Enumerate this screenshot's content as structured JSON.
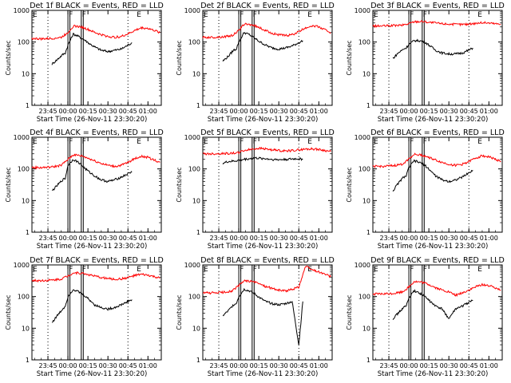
{
  "figure": {
    "xlabel": "Start Time (26-Nov-11 23:30:20)",
    "ylabel": "Counts/sec",
    "x_ticks": [
      "23:45",
      "00:00",
      "00:15",
      "00:30",
      "00:45",
      "01:00"
    ],
    "y_ticks": [
      "1",
      "10",
      "100",
      "1000"
    ],
    "colors": {
      "events": "#000000",
      "lld": "#ff0000",
      "axes": "#000000"
    }
  },
  "chart_data": [
    {
      "type": "line",
      "title": "Det 1f BLACK = Events, RED = LLD",
      "ylim": [
        1,
        1000
      ],
      "yscale": "log",
      "xlim": [
        "23:33",
        "01:10"
      ],
      "series": [
        {
          "name": "Events",
          "color": "#000000",
          "x": [
            "23:48",
            "23:52",
            "23:56",
            "23:58",
            "00:00",
            "00:04",
            "00:08",
            "00:12",
            "00:16",
            "00:20",
            "00:25",
            "00:30",
            "00:35",
            "00:40",
            "00:45",
            "00:48"
          ],
          "y": [
            20,
            28,
            40,
            45,
            80,
            180,
            150,
            120,
            90,
            70,
            55,
            50,
            55,
            60,
            80,
            95
          ]
        },
        {
          "name": "LLD",
          "color": "#ff0000",
          "x": [
            "23:33",
            "23:40",
            "23:48",
            "23:55",
            "00:00",
            "00:04",
            "00:10",
            "00:15",
            "00:20",
            "00:25",
            "00:30",
            "00:35",
            "00:40",
            "00:45",
            "00:50",
            "00:55",
            "01:00",
            "01:05",
            "01:09"
          ],
          "y": [
            130,
            125,
            130,
            140,
            200,
            320,
            300,
            250,
            200,
            170,
            150,
            140,
            150,
            180,
            230,
            280,
            270,
            230,
            200
          ]
        }
      ],
      "markers": [
        {
          "label": "E",
          "time": "23:33"
        },
        {
          "label": "F",
          "time": "00:00"
        },
        {
          "label": "F",
          "time": "00:10"
        },
        {
          "label": "E",
          "time": "00:51"
        }
      ]
    },
    {
      "type": "line",
      "title": "Det 2f BLACK = Events, RED = LLD",
      "ylim": [
        1,
        1000
      ],
      "yscale": "log",
      "xlim": [
        "23:33",
        "01:10"
      ],
      "series": [
        {
          "name": "Events",
          "color": "#000000",
          "x": [
            "23:48",
            "23:52",
            "23:56",
            "23:58",
            "00:00",
            "00:04",
            "00:08",
            "00:12",
            "00:16",
            "00:20",
            "00:25",
            "00:30",
            "00:35",
            "00:40",
            "00:45",
            "00:48"
          ],
          "y": [
            25,
            35,
            55,
            60,
            100,
            200,
            170,
            130,
            100,
            80,
            65,
            60,
            65,
            75,
            95,
            110
          ]
        },
        {
          "name": "LLD",
          "color": "#ff0000",
          "x": [
            "23:33",
            "23:40",
            "23:48",
            "23:55",
            "00:00",
            "00:04",
            "00:10",
            "00:15",
            "00:20",
            "00:25",
            "00:30",
            "00:35",
            "00:40",
            "00:45",
            "00:50",
            "00:55",
            "01:00",
            "01:05",
            "01:09"
          ],
          "y": [
            140,
            140,
            145,
            160,
            230,
            370,
            350,
            290,
            230,
            190,
            170,
            160,
            170,
            210,
            280,
            330,
            300,
            240,
            200
          ]
        }
      ],
      "markers": [
        {
          "label": "E",
          "time": "23:33"
        },
        {
          "label": "F",
          "time": "00:00"
        },
        {
          "label": "F",
          "time": "00:10"
        },
        {
          "label": "E",
          "time": "00:51"
        }
      ]
    },
    {
      "type": "line",
      "title": "Det 3f BLACK = Events, RED = LLD",
      "ylim": [
        1,
        1000
      ],
      "yscale": "log",
      "xlim": [
        "23:33",
        "01:10"
      ],
      "series": [
        {
          "name": "Events",
          "color": "#000000",
          "x": [
            "23:48",
            "23:52",
            "23:56",
            "23:58",
            "00:00",
            "00:04",
            "00:08",
            "00:12",
            "00:16",
            "00:20",
            "00:25",
            "00:30",
            "00:35",
            "00:40",
            "00:45",
            "00:48"
          ],
          "y": [
            30,
            45,
            60,
            65,
            85,
            110,
            110,
            100,
            75,
            55,
            45,
            42,
            42,
            45,
            55,
            65
          ]
        },
        {
          "name": "LLD",
          "color": "#ff0000",
          "x": [
            "23:33",
            "23:40",
            "23:48",
            "23:55",
            "00:00",
            "00:04",
            "00:10",
            "00:15",
            "00:20",
            "00:25",
            "00:30",
            "00:35",
            "00:40",
            "00:45",
            "00:50",
            "00:55",
            "01:00",
            "01:05",
            "01:09"
          ],
          "y": [
            320,
            320,
            330,
            340,
            380,
            440,
            450,
            420,
            400,
            380,
            370,
            360,
            360,
            370,
            390,
            410,
            400,
            380,
            360
          ]
        }
      ],
      "markers": [
        {
          "label": "E",
          "time": "23:33"
        },
        {
          "label": "F",
          "time": "00:00"
        },
        {
          "label": "F",
          "time": "00:10"
        },
        {
          "label": "E",
          "time": "00:51"
        }
      ]
    },
    {
      "type": "line",
      "title": "Det 4f BLACK = Events, RED = LLD",
      "ylim": [
        1,
        1000
      ],
      "yscale": "log",
      "xlim": [
        "23:33",
        "01:10"
      ],
      "series": [
        {
          "name": "Events",
          "color": "#000000",
          "x": [
            "23:48",
            "23:52",
            "23:56",
            "23:58",
            "00:00",
            "00:04",
            "00:08",
            "00:12",
            "00:16",
            "00:20",
            "00:25",
            "00:30",
            "00:35",
            "00:40",
            "00:45",
            "00:48"
          ],
          "y": [
            20,
            30,
            45,
            50,
            130,
            200,
            160,
            110,
            80,
            60,
            45,
            40,
            45,
            55,
            70,
            80
          ]
        },
        {
          "name": "LLD",
          "color": "#ff0000",
          "x": [
            "23:33",
            "23:40",
            "23:48",
            "23:55",
            "00:00",
            "00:04",
            "00:10",
            "00:15",
            "00:20",
            "00:25",
            "00:30",
            "00:35",
            "00:40",
            "00:45",
            "00:50",
            "00:55",
            "01:00",
            "01:05",
            "01:09"
          ],
          "y": [
            110,
            110,
            115,
            130,
            200,
            280,
            260,
            220,
            180,
            150,
            130,
            120,
            130,
            160,
            210,
            250,
            230,
            190,
            160
          ]
        }
      ],
      "markers": [
        {
          "label": "E",
          "time": "23:33"
        },
        {
          "label": "F",
          "time": "00:00"
        },
        {
          "label": "F",
          "time": "00:10"
        },
        {
          "label": "E",
          "time": "00:51"
        }
      ]
    },
    {
      "type": "line",
      "title": "Det 5f BLACK = Events, RED = LLD",
      "ylim": [
        1,
        1000
      ],
      "yscale": "log",
      "xlim": [
        "23:33",
        "01:10"
      ],
      "series": [
        {
          "name": "Events",
          "color": "#000000",
          "x": [
            "23:48",
            "23:52",
            "23:56",
            "23:58",
            "00:00",
            "00:04",
            "00:08",
            "00:12",
            "00:16",
            "00:20",
            "00:25",
            "00:30",
            "00:35",
            "00:40",
            "00:45",
            "00:48"
          ],
          "y": [
            150,
            170,
            175,
            180,
            185,
            200,
            210,
            220,
            215,
            210,
            200,
            195,
            200,
            205,
            210,
            200
          ]
        },
        {
          "name": "LLD",
          "color": "#ff0000",
          "x": [
            "23:33",
            "23:40",
            "23:48",
            "23:55",
            "00:00",
            "00:04",
            "00:10",
            "00:15",
            "00:20",
            "00:25",
            "00:30",
            "00:35",
            "00:40",
            "00:45",
            "00:50",
            "00:55",
            "01:00",
            "01:05",
            "01:09"
          ],
          "y": [
            300,
            300,
            305,
            310,
            330,
            380,
            420,
            450,
            430,
            400,
            380,
            370,
            380,
            400,
            420,
            430,
            410,
            380,
            350
          ]
        }
      ],
      "markers": [
        {
          "label": "E",
          "time": "23:33"
        },
        {
          "label": "F",
          "time": "00:00"
        },
        {
          "label": "F",
          "time": "00:10"
        },
        {
          "label": "E",
          "time": "00:51"
        }
      ]
    },
    {
      "type": "line",
      "title": "Det 6f BLACK = Events, RED = LLD",
      "ylim": [
        1,
        1000
      ],
      "yscale": "log",
      "xlim": [
        "23:33",
        "01:10"
      ],
      "series": [
        {
          "name": "Events",
          "color": "#000000",
          "x": [
            "23:48",
            "23:52",
            "23:56",
            "23:58",
            "00:00",
            "00:04",
            "00:08",
            "00:12",
            "00:16",
            "00:20",
            "00:25",
            "00:30",
            "00:35",
            "00:40",
            "00:45",
            "00:48"
          ],
          "y": [
            20,
            35,
            55,
            60,
            110,
            180,
            160,
            130,
            90,
            60,
            45,
            40,
            45,
            55,
            75,
            90
          ]
        },
        {
          "name": "LLD",
          "color": "#ff0000",
          "x": [
            "23:33",
            "23:40",
            "23:48",
            "23:55",
            "00:00",
            "00:04",
            "00:10",
            "00:15",
            "00:20",
            "00:25",
            "00:30",
            "00:35",
            "00:40",
            "00:45",
            "00:50",
            "00:55",
            "01:00",
            "01:05",
            "01:09"
          ],
          "y": [
            120,
            120,
            125,
            140,
            210,
            290,
            270,
            230,
            190,
            160,
            140,
            130,
            140,
            170,
            220,
            260,
            240,
            200,
            170
          ]
        }
      ],
      "markers": [
        {
          "label": "E",
          "time": "23:33"
        },
        {
          "label": "F",
          "time": "00:00"
        },
        {
          "label": "F",
          "time": "00:10"
        },
        {
          "label": "E",
          "time": "00:51"
        }
      ]
    },
    {
      "type": "line",
      "title": "Det 7f BLACK = Events, RED = LLD",
      "ylim": [
        1,
        1000
      ],
      "yscale": "log",
      "xlim": [
        "23:33",
        "01:10"
      ],
      "series": [
        {
          "name": "Events",
          "color": "#000000",
          "x": [
            "23:48",
            "23:52",
            "23:56",
            "23:58",
            "00:00",
            "00:04",
            "00:08",
            "00:12",
            "00:16",
            "00:20",
            "00:25",
            "00:30",
            "00:35",
            "00:40",
            "00:45",
            "00:48"
          ],
          "y": [
            15,
            25,
            40,
            50,
            100,
            170,
            140,
            110,
            80,
            55,
            45,
            40,
            45,
            55,
            70,
            80
          ]
        },
        {
          "name": "LLD",
          "color": "#ff0000",
          "x": [
            "23:33",
            "23:40",
            "23:48",
            "23:55",
            "00:00",
            "00:04",
            "00:10",
            "00:15",
            "00:20",
            "00:25",
            "00:30",
            "00:35",
            "00:40",
            "00:45",
            "00:50",
            "00:55",
            "01:00",
            "01:05",
            "01:09"
          ],
          "y": [
            320,
            320,
            330,
            360,
            450,
            560,
            550,
            500,
            440,
            400,
            370,
            350,
            360,
            400,
            460,
            500,
            470,
            420,
            380
          ]
        }
      ],
      "markers": [
        {
          "label": "E",
          "time": "23:33"
        },
        {
          "label": "F",
          "time": "00:00"
        },
        {
          "label": "F",
          "time": "00:10"
        },
        {
          "label": "E",
          "time": "00:51"
        }
      ]
    },
    {
      "type": "line",
      "title": "Det 8f BLACK = Events, RED = LLD",
      "ylim": [
        1,
        1000
      ],
      "yscale": "log",
      "xlim": [
        "23:33",
        "01:10"
      ],
      "series": [
        {
          "name": "Events",
          "color": "#000000",
          "x": [
            "23:48",
            "23:52",
            "23:56",
            "23:58",
            "00:00",
            "00:04",
            "00:08",
            "00:12",
            "00:16",
            "00:20",
            "00:25",
            "00:30",
            "00:35",
            "00:40",
            "00:45",
            "00:48"
          ],
          "y": [
            25,
            35,
            55,
            60,
            100,
            170,
            150,
            120,
            90,
            70,
            60,
            55,
            60,
            70,
            3,
            70
          ]
        },
        {
          "name": "LLD",
          "color": "#ff0000",
          "x": [
            "23:33",
            "23:40",
            "23:48",
            "23:55",
            "00:00",
            "00:04",
            "00:10",
            "00:15",
            "00:20",
            "00:25",
            "00:30",
            "00:35",
            "00:40",
            "00:45",
            "00:50",
            "00:55",
            "01:00",
            "01:05",
            "01:09"
          ],
          "y": [
            130,
            130,
            135,
            150,
            220,
            320,
            300,
            260,
            210,
            180,
            160,
            150,
            170,
            200,
            900,
            700,
            600,
            500,
            420
          ]
        }
      ],
      "markers": [
        {
          "label": "E",
          "time": "23:33"
        },
        {
          "label": "F",
          "time": "00:00"
        },
        {
          "label": "F",
          "time": "00:10"
        },
        {
          "label": "E",
          "time": "00:51"
        }
      ]
    },
    {
      "type": "line",
      "title": "Det 9f BLACK = Events, RED = LLD",
      "ylim": [
        1,
        1000
      ],
      "yscale": "log",
      "xlim": [
        "23:33",
        "01:10"
      ],
      "series": [
        {
          "name": "Events",
          "color": "#000000",
          "x": [
            "23:48",
            "23:52",
            "23:56",
            "23:58",
            "00:00",
            "00:04",
            "00:08",
            "00:12",
            "00:16",
            "00:20",
            "00:25",
            "00:30",
            "00:35",
            "00:40",
            "00:45",
            "00:48"
          ],
          "y": [
            20,
            30,
            45,
            50,
            90,
            150,
            130,
            100,
            70,
            50,
            40,
            20,
            40,
            50,
            65,
            75
          ]
        },
        {
          "name": "LLD",
          "color": "#ff0000",
          "x": [
            "23:33",
            "23:40",
            "23:48",
            "23:55",
            "00:00",
            "00:04",
            "00:10",
            "00:15",
            "00:20",
            "00:25",
            "00:30",
            "00:35",
            "00:40",
            "00:45",
            "00:50",
            "00:55",
            "01:00",
            "01:05",
            "01:09"
          ],
          "y": [
            120,
            120,
            125,
            140,
            200,
            300,
            280,
            240,
            190,
            160,
            140,
            110,
            130,
            160,
            200,
            240,
            220,
            190,
            160
          ]
        }
      ],
      "markers": [
        {
          "label": "E",
          "time": "23:33"
        },
        {
          "label": "F",
          "time": "00:00"
        },
        {
          "label": "F",
          "time": "00:10"
        },
        {
          "label": "E",
          "time": "00:51"
        }
      ]
    }
  ]
}
